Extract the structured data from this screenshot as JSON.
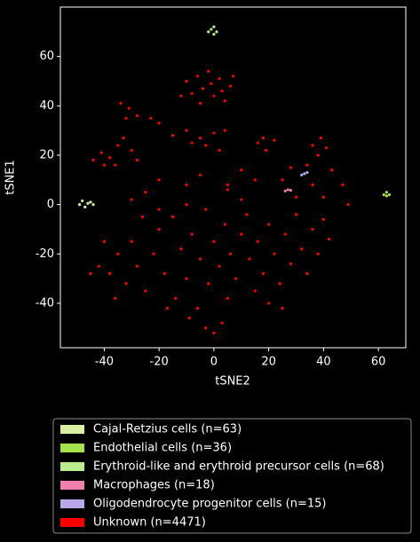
{
  "chart_data": {
    "type": "scatter",
    "x_label": "tSNE2",
    "y_label": "tSNE1",
    "xlim": [
      -56,
      70
    ],
    "ylim": [
      -58,
      80
    ],
    "xticks": [
      -40,
      -20,
      0,
      20,
      40,
      60
    ],
    "yticks": [
      -40,
      -20,
      0,
      20,
      40,
      60
    ],
    "legend": "below",
    "series": [
      {
        "name": "Cajal-Retzius cells (n=63)",
        "color": "#d9f0a3",
        "x": [
          -49,
          -47,
          -45,
          -44,
          -48,
          -46
        ],
        "values": [
          0,
          -1,
          1,
          0,
          1.5,
          0.5
        ]
      },
      {
        "name": "Endothelial cells (n=36)",
        "color": "#a6e04a",
        "x": [
          62,
          63,
          64,
          63
        ],
        "values": [
          4,
          5,
          4,
          3.5
        ]
      },
      {
        "name": "Erythroid-like and erythroid precursor cells (n=68)",
        "color": "#b8ec8c",
        "x": [
          -2,
          0,
          1,
          -1,
          0
        ],
        "values": [
          70,
          72,
          70,
          71,
          69
        ]
      },
      {
        "name": "Macrophages (n=18)",
        "color": "#f080b0",
        "x": [
          26,
          27,
          28
        ],
        "values": [
          5.5,
          6,
          5.8
        ]
      },
      {
        "name": "Oligodendrocyte progenitor cells (n=15)",
        "color": "#b8a8e8",
        "x": [
          32,
          33,
          34
        ],
        "values": [
          12,
          12.5,
          13
        ]
      },
      {
        "name": "Unknown (n=4471)",
        "color": "#ff0000",
        "x": [
          -10,
          -6,
          -2,
          2,
          6,
          -8,
          -4,
          0,
          4,
          -12,
          -1,
          3,
          7,
          -5,
          -34,
          -31,
          -28,
          -23,
          -20,
          -32,
          -44,
          -41,
          -38,
          -35,
          -33,
          -30,
          -36,
          -40,
          -28,
          -15,
          -10,
          -5,
          0,
          4,
          -3,
          2,
          -8,
          16,
          19,
          22,
          18,
          36,
          38,
          41,
          39,
          34,
          43,
          36,
          40,
          5,
          5,
          10,
          15,
          -20,
          -10,
          -5,
          -25,
          -30,
          25,
          28,
          30,
          47,
          49,
          -42,
          -38,
          -35,
          -32,
          -30,
          -28,
          -25,
          -22,
          -20,
          -18,
          -15,
          -14,
          -12,
          -10,
          -8,
          -6,
          -5,
          -3,
          -2,
          0,
          2,
          4,
          5,
          6,
          8,
          10,
          12,
          13,
          15,
          16,
          18,
          20,
          22,
          24,
          26,
          28,
          30,
          32,
          34,
          36,
          38,
          40,
          42,
          -40,
          -45,
          -36,
          -26,
          -17,
          -9,
          -3,
          0,
          3,
          -10,
          -20,
          10,
          20,
          25
        ],
        "values": [
          50,
          52,
          54,
          51,
          48,
          45,
          47,
          44,
          42,
          44,
          49,
          46,
          52,
          41,
          41,
          39,
          36,
          35,
          33,
          35,
          18,
          21,
          19,
          24,
          27,
          22,
          16,
          16,
          18,
          28,
          30,
          27,
          29,
          30,
          24,
          22,
          25,
          25,
          22,
          26,
          27,
          24,
          20,
          23,
          27,
          16,
          14,
          8,
          3,
          6,
          8,
          14,
          10,
          10,
          8,
          12,
          5,
          2,
          10,
          15,
          3,
          8,
          0,
          -25,
          -28,
          -20,
          -32,
          -15,
          -25,
          -35,
          -20,
          -10,
          -28,
          -5,
          -38,
          -18,
          -30,
          -12,
          -42,
          -22,
          -2,
          -32,
          -15,
          -25,
          -8,
          -38,
          -20,
          -30,
          -12,
          -4,
          -22,
          -35,
          -15,
          -28,
          -8,
          -20,
          -32,
          -12,
          -24,
          -4,
          -18,
          -28,
          -10,
          -20,
          -6,
          -14,
          -15,
          -28,
          -38,
          -5,
          -42,
          -46,
          -50,
          -52,
          -48,
          0,
          -2,
          2,
          -40,
          -42
        ]
      }
    ]
  }
}
